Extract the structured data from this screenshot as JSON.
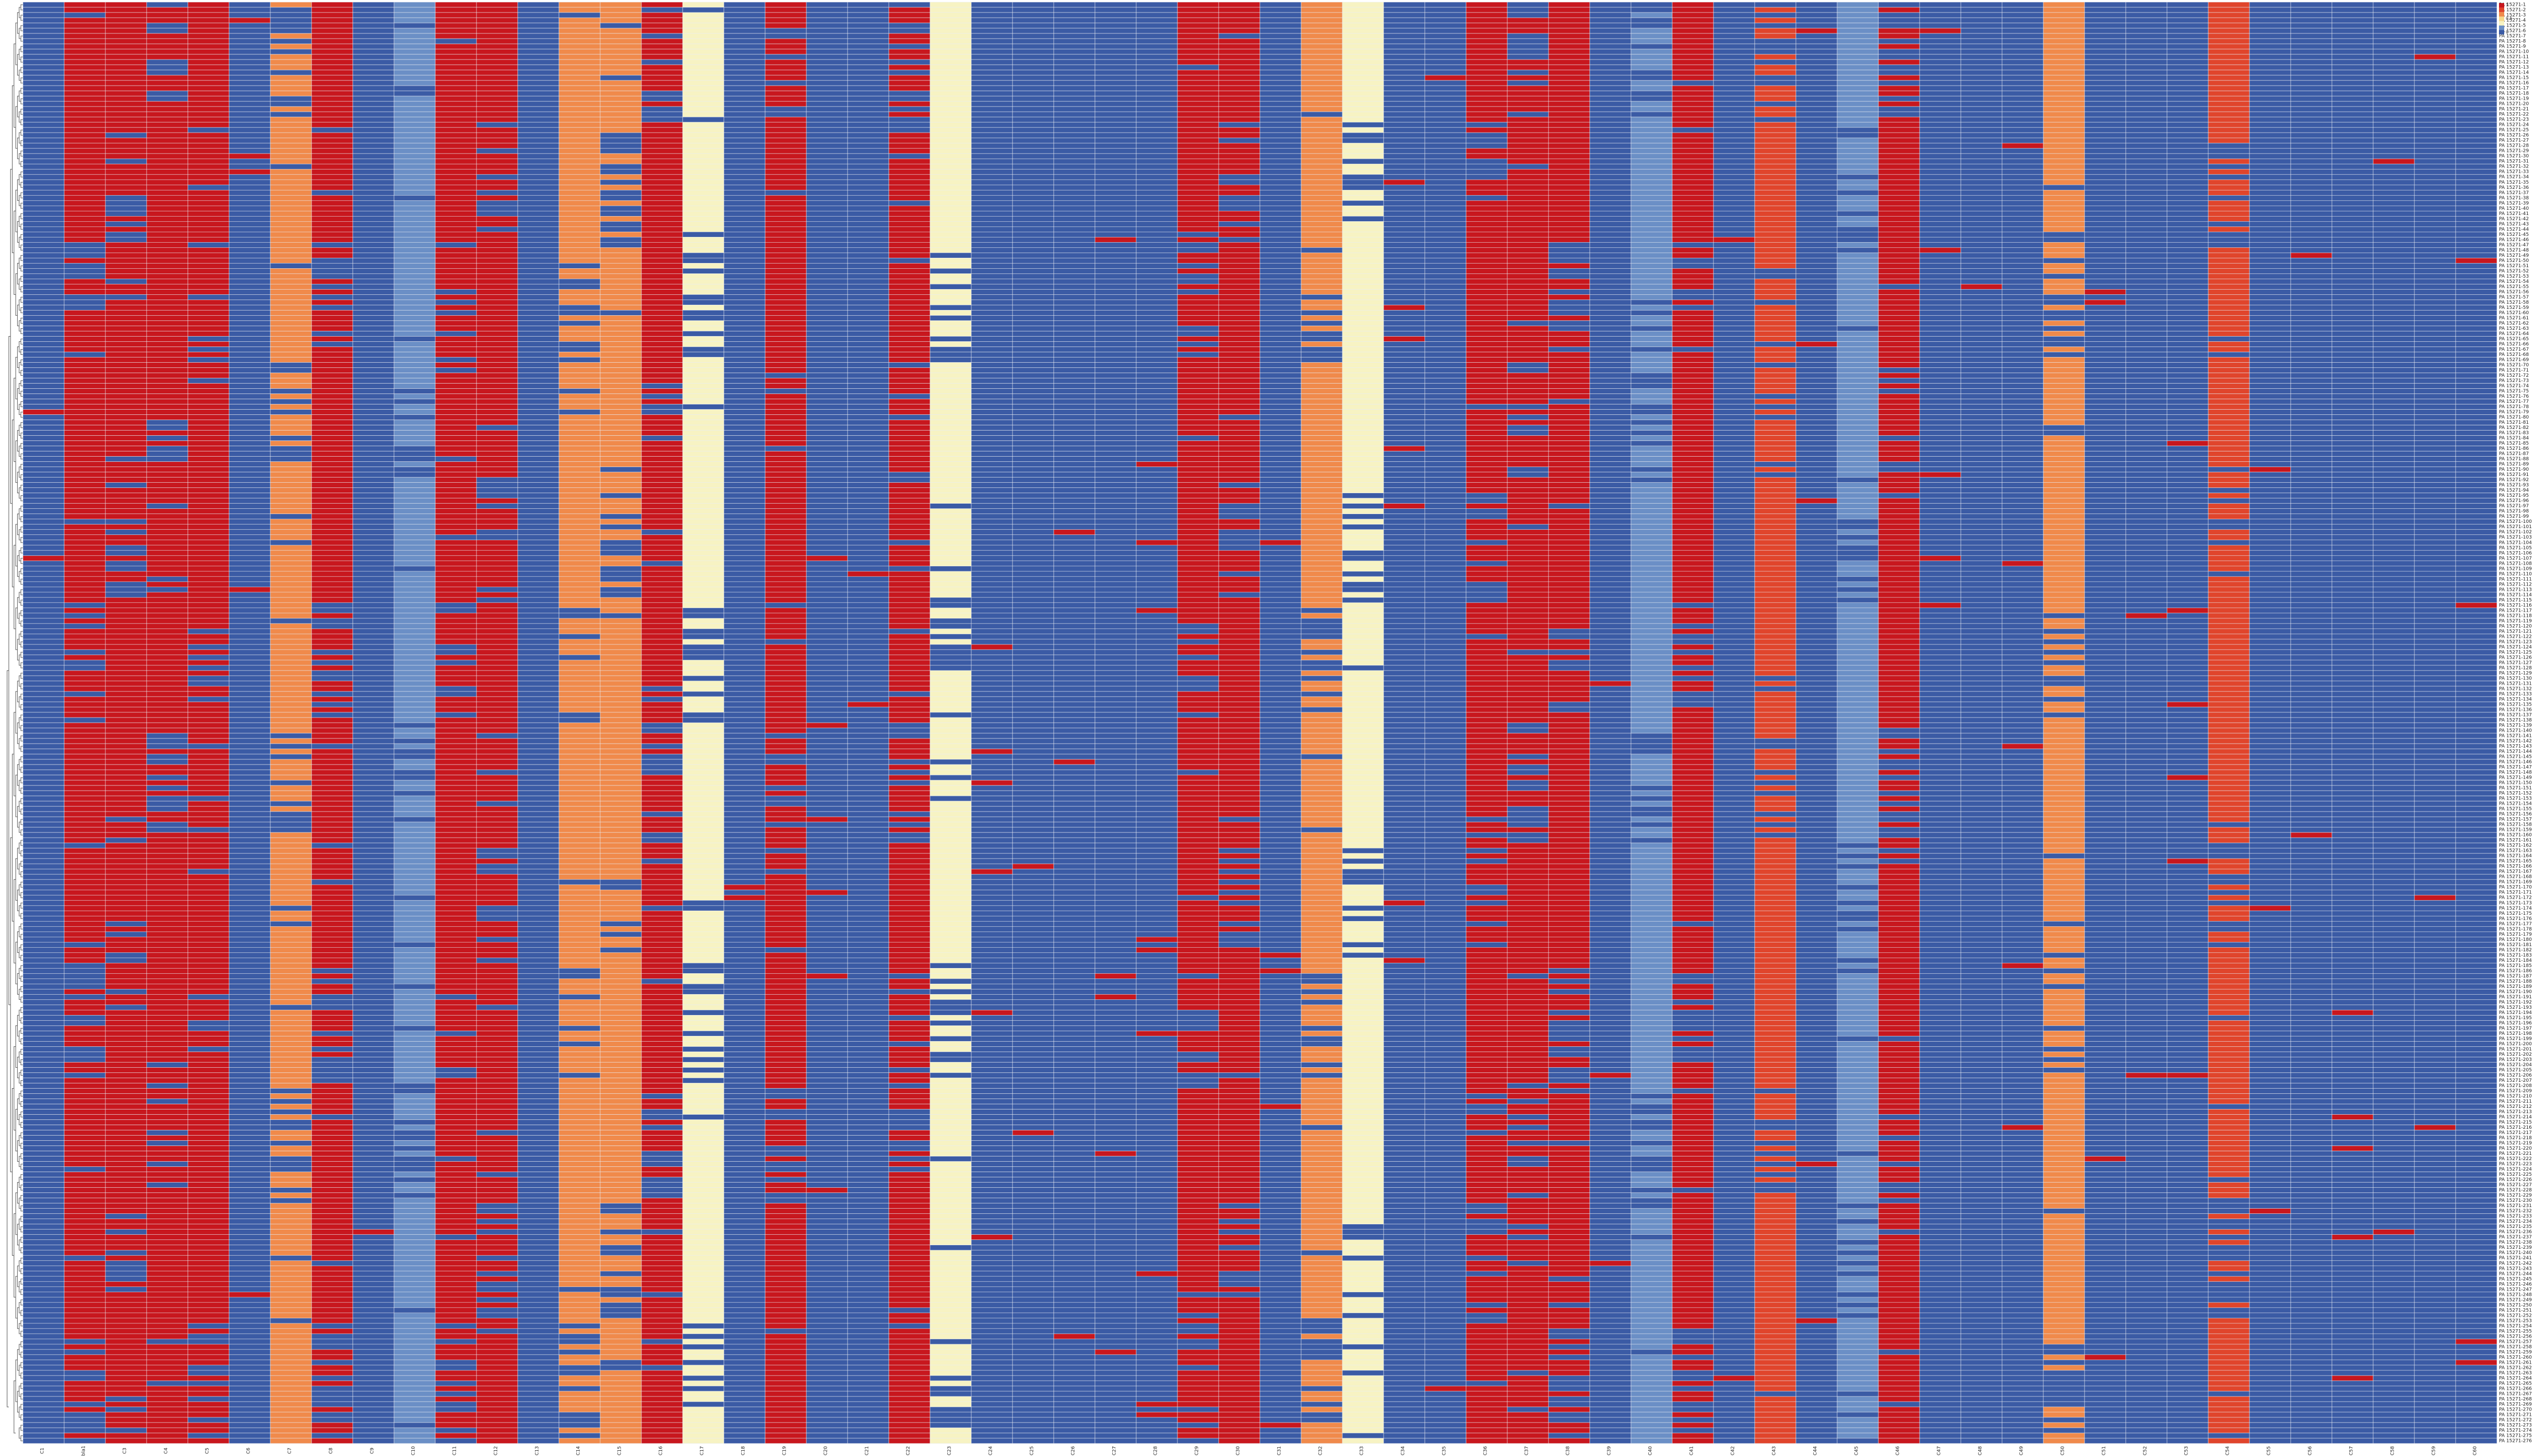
{
  "chart_data": {
    "type": "heatmap",
    "title": "",
    "subtitle": "",
    "xlabel": "",
    "ylabel": "",
    "row_count": 276,
    "column_count": 60,
    "row_label_prefix": "PA 15271-",
    "columns": [
      "C1",
      "bla1",
      "C3",
      "C4",
      "C5",
      "C6",
      "C7",
      "C8",
      "C9",
      "C10",
      "C11",
      "C12",
      "C13",
      "C14",
      "C15",
      "C16",
      "C17",
      "C18",
      "C19",
      "C20",
      "C21",
      "C22",
      "C23",
      "C24",
      "C25",
      "C26",
      "C27",
      "C28",
      "C29",
      "C30",
      "C31",
      "C32",
      "C33",
      "C34",
      "C35",
      "C36",
      "C37",
      "C38",
      "C39",
      "C40",
      "C41",
      "C42",
      "C43",
      "C44",
      "C45",
      "C46",
      "C47",
      "C48",
      "C49",
      "C50",
      "C51",
      "C52",
      "C53",
      "C54",
      "C55",
      "C56",
      "C57",
      "C58",
      "C59",
      "C60"
    ],
    "value_range": [
      0,
      1
    ],
    "colormap": [
      "#3b5ba5",
      "#6b8fc6",
      "#f7f3c3",
      "#f6d88a",
      "#f08a4b",
      "#e0452c",
      "#c8171e"
    ],
    "legend": {
      "position": "top-right",
      "ticks": [
        "1",
        "0.5",
        "0"
      ]
    },
    "gridlines": true,
    "column_fill": {
      "1": 0.95,
      "2": 0.95,
      "3": 0.95,
      "4": 0.95,
      "6": 0.7,
      "7": 0.9,
      "9": 0.2,
      "10": 0.95,
      "11": 0.95,
      "12": 0.1,
      "13": 0.65,
      "14": 0.7,
      "15": 0.92,
      "16": 0.35,
      "18": 0.93,
      "21": 0.92,
      "22": 0.3,
      "28": 0.92,
      "29": 0.88,
      "31": 0.72,
      "32": 0.35,
      "35": 0.93,
      "36": 0.93,
      "37": 0.93,
      "39": 0.2,
      "40": 0.92,
      "42": 0.85,
      "44": 0.2,
      "45": 0.92,
      "49": 0.73,
      "53": 0.75
    }
  }
}
